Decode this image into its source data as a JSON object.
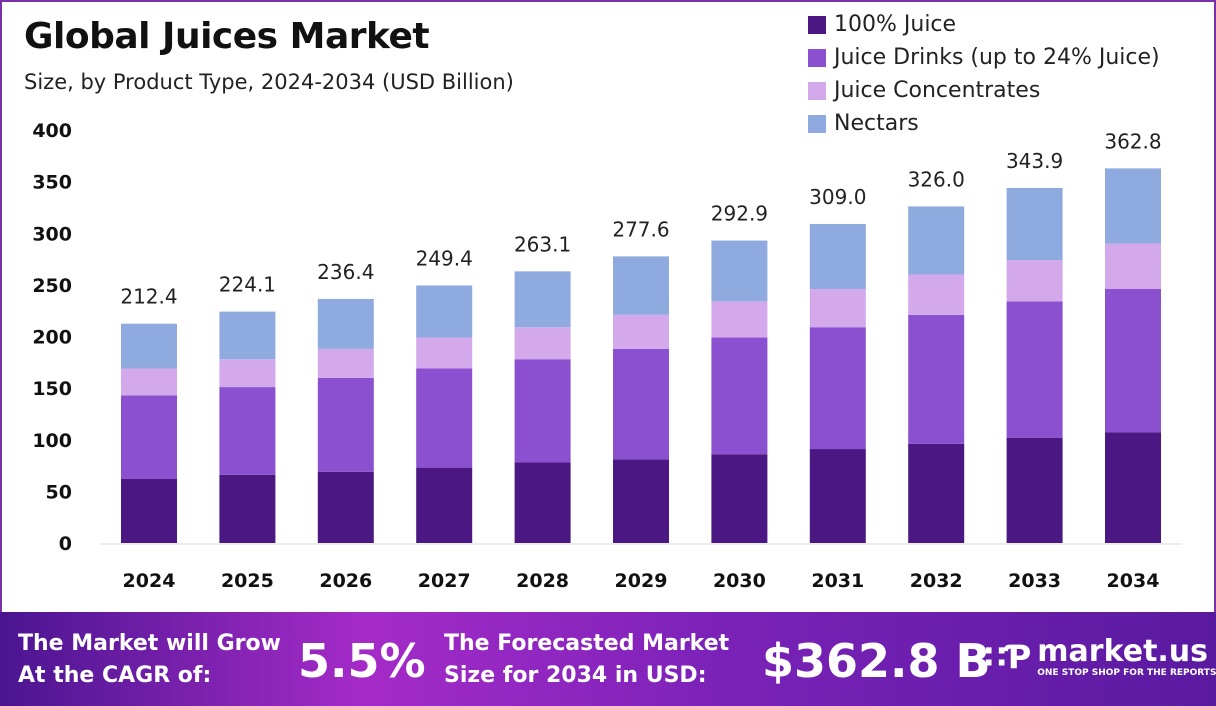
{
  "chart_data": {
    "type": "bar",
    "stacked": true,
    "title": "Global Juices Market",
    "subtitle": "Size, by Product Type, 2024-2034 (USD Billion)",
    "categories": [
      "2024",
      "2025",
      "2026",
      "2027",
      "2028",
      "2029",
      "2030",
      "2031",
      "2032",
      "2033",
      "2034"
    ],
    "series": [
      {
        "name": "100% Juice",
        "color": "#4b1782",
        "values": [
          62,
          66,
          69,
          73,
          78,
          81,
          86,
          91,
          96,
          102,
          107
        ]
      },
      {
        "name": "Juice Drinks (up to 24% Juice)",
        "color": "#8b50cf",
        "values": [
          81,
          85,
          91,
          96,
          100,
          107,
          113,
          118,
          125,
          132,
          139
        ]
      },
      {
        "name": "Juice Concentrates",
        "color": "#d3a9ec",
        "values": [
          26,
          27,
          28,
          30,
          31,
          33,
          35,
          37,
          39,
          40,
          44
        ]
      },
      {
        "name": "Nectars",
        "color": "#8faadf",
        "values": [
          43.4,
          46.1,
          48.4,
          50.4,
          54.1,
          56.6,
          58.9,
          63.0,
          66.0,
          69.9,
          72.8
        ]
      }
    ],
    "totals": [
      "212.4",
      "224.1",
      "236.4",
      "249.4",
      "263.1",
      "277.6",
      "292.9",
      "309.0",
      "326.0",
      "343.9",
      "362.8"
    ],
    "yticks": [
      "0",
      "50",
      "100",
      "150",
      "200",
      "250",
      "300",
      "350",
      "400"
    ],
    "ylim": [
      0,
      400
    ],
    "grid": false,
    "legend": "top-right"
  },
  "footer": {
    "cagr_label_1": "The Market will Grow",
    "cagr_label_2": "At the CAGR of:",
    "cagr_value": "5.5%",
    "forecast_label_1": "The Forecasted Market",
    "forecast_label_2": "Size for 2034 in USD:",
    "forecast_value": "$362.8 B",
    "logo_name": "market.us",
    "logo_tagline": "ONE STOP SHOP FOR THE REPORTS"
  }
}
